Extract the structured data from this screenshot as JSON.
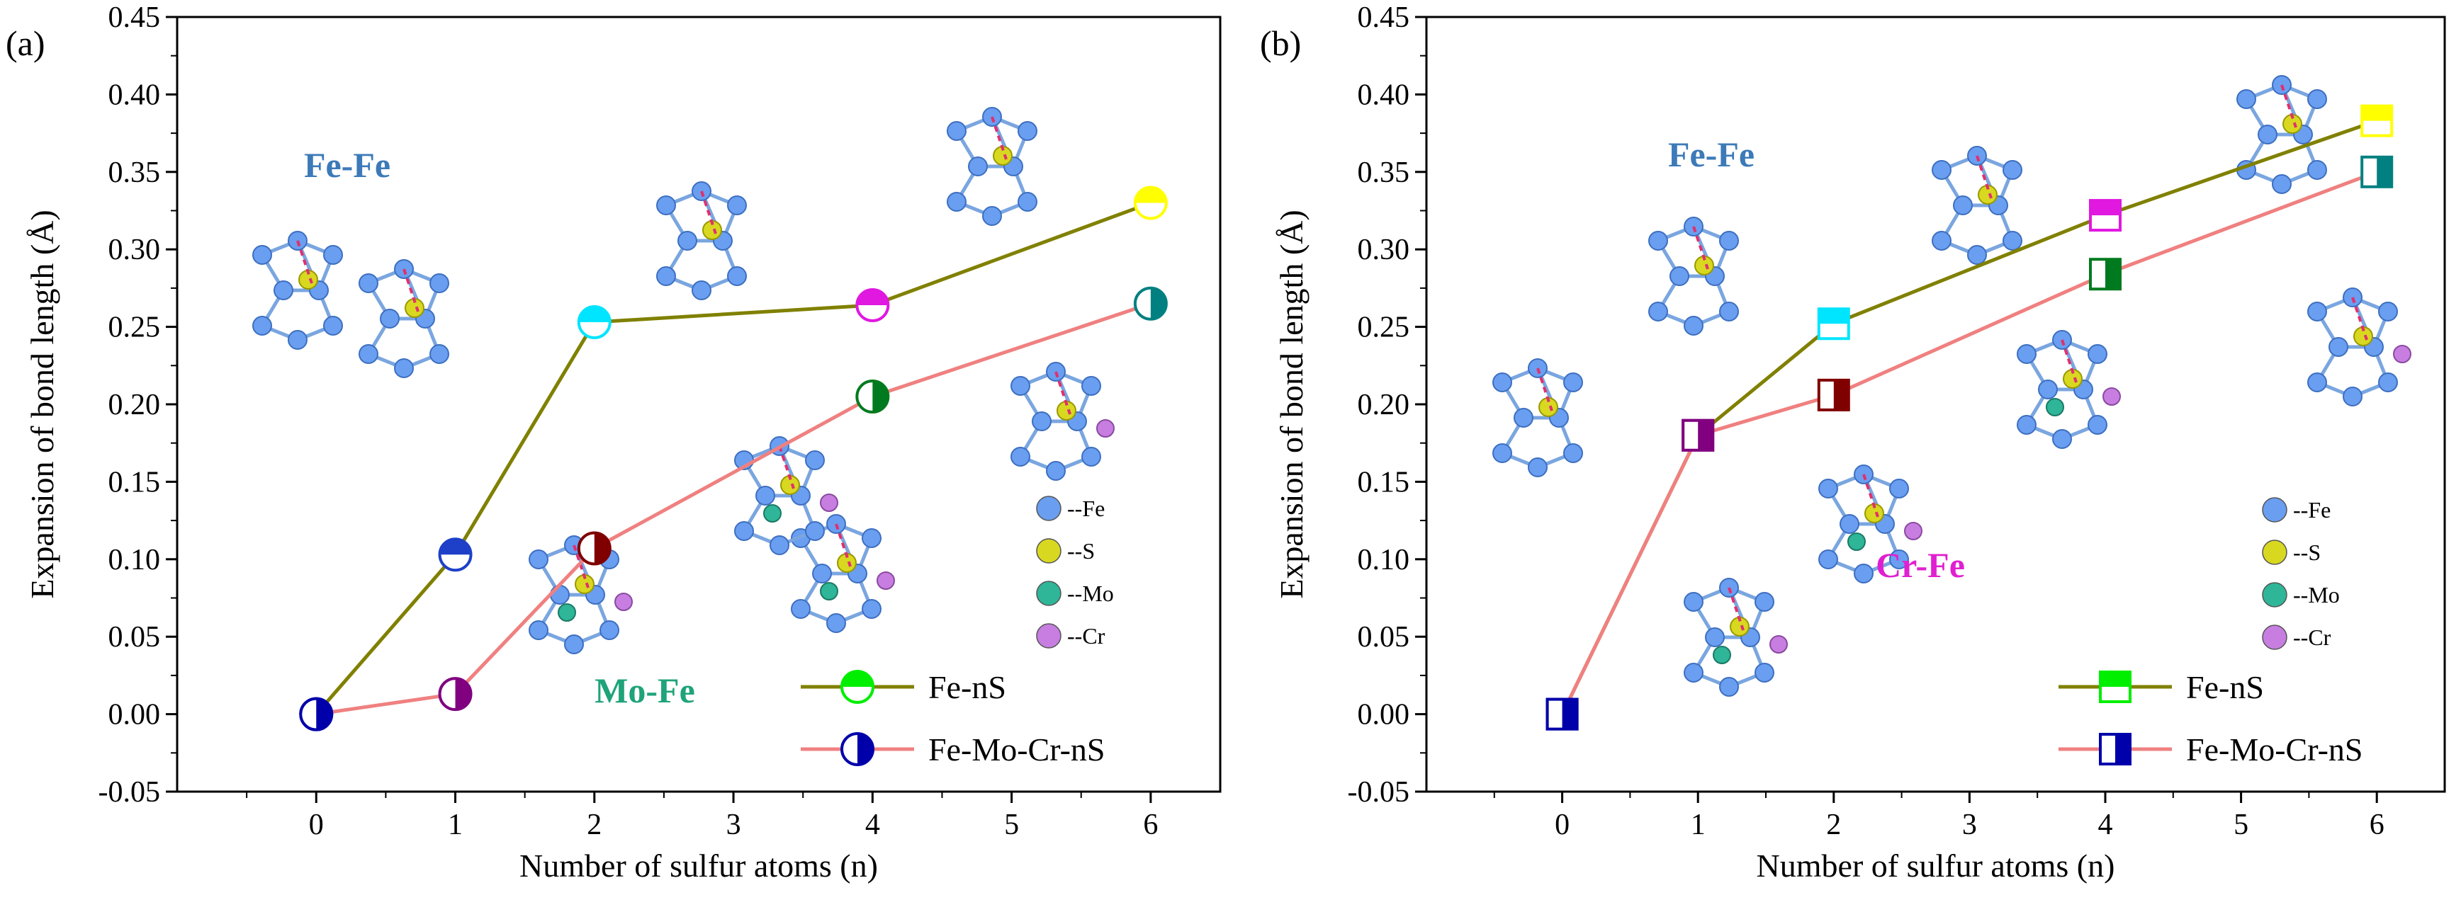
{
  "chart_data": [
    {
      "type": "line",
      "panel_label": "(a)",
      "xlabel": "Number of sulfur atoms (n)",
      "ylabel": "Expansion of bond length (Å)",
      "xlim": [
        -1,
        6.5
      ],
      "ylim": [
        -0.05,
        0.45
      ],
      "xticks": [
        "0",
        "1",
        "2",
        "3",
        "4",
        "5",
        "6"
      ],
      "yticks": [
        "-0.05",
        "0.00",
        "0.05",
        "0.10",
        "0.15",
        "0.20",
        "0.25",
        "0.30",
        "0.35",
        "0.40",
        "0.45"
      ],
      "marker": "circle",
      "series": [
        {
          "name": "Fe-nS",
          "color": "#808000",
          "x": [
            0,
            1,
            2,
            4,
            6
          ],
          "y": [
            0.0,
            0.103,
            0.253,
            0.264,
            0.33
          ],
          "marker_colors": [
            "#0000aa",
            "#1e40c8",
            "#00e5ff",
            "#e018e0",
            "#ffff00"
          ]
        },
        {
          "name": "Fe-Mo-Cr-nS",
          "color": "#f08080",
          "x": [
            0,
            1,
            2,
            4,
            6
          ],
          "y": [
            0.0,
            0.013,
            0.107,
            0.205,
            0.265
          ],
          "marker_colors": [
            "#0000aa",
            "#800080",
            "#800000",
            "#007a1e",
            "#008080"
          ]
        }
      ],
      "annotations": [
        {
          "text": "Fe-Fe",
          "color": "#3c7ab8"
        },
        {
          "text": "Mo-Fe",
          "color": "#1fa37a"
        }
      ],
      "atom_key": [
        {
          "label": "--Fe",
          "color": "#6a9ef0"
        },
        {
          "label": "--S",
          "color": "#d8d820"
        },
        {
          "label": "--Mo",
          "color": "#2fb598"
        },
        {
          "label": "--Cr",
          "color": "#c77ee0"
        }
      ]
    },
    {
      "type": "line",
      "panel_label": "(b)",
      "xlabel": "Number of sulfur atoms (n)",
      "ylabel": "Expansion of bond length (Å)",
      "xlim": [
        -1,
        6.5
      ],
      "ylim": [
        -0.05,
        0.45
      ],
      "xticks": [
        "0",
        "1",
        "2",
        "3",
        "4",
        "5",
        "6"
      ],
      "yticks": [
        "-0.05",
        "0.00",
        "0.05",
        "0.10",
        "0.15",
        "0.20",
        "0.25",
        "0.30",
        "0.35",
        "0.40",
        "0.45"
      ],
      "marker": "square",
      "series": [
        {
          "name": "Fe-nS",
          "color": "#808000",
          "x": [
            0,
            1,
            2,
            4,
            6
          ],
          "y": [
            0.0,
            0.18,
            0.252,
            0.322,
            0.383
          ],
          "marker_colors": [
            "#0000aa",
            "#800080",
            "#00e5ff",
            "#e018e0",
            "#ffff00"
          ]
        },
        {
          "name": "Fe-Mo-Cr-nS",
          "color": "#f08080",
          "x": [
            0,
            1,
            2,
            4,
            6
          ],
          "y": [
            0.0,
            0.18,
            0.206,
            0.284,
            0.35
          ],
          "marker_colors": [
            "#0000aa",
            "#800080",
            "#800000",
            "#007a1e",
            "#008080"
          ]
        }
      ],
      "annotations": [
        {
          "text": "Fe-Fe",
          "color": "#3c7ab8"
        },
        {
          "text": "Cr-Fe",
          "color": "#e020d0"
        }
      ],
      "atom_key": [
        {
          "label": "--Fe",
          "color": "#6a9ef0"
        },
        {
          "label": "--S",
          "color": "#d8d820"
        },
        {
          "label": "--Mo",
          "color": "#2fb598"
        },
        {
          "label": "--Cr",
          "color": "#c77ee0"
        }
      ]
    }
  ]
}
